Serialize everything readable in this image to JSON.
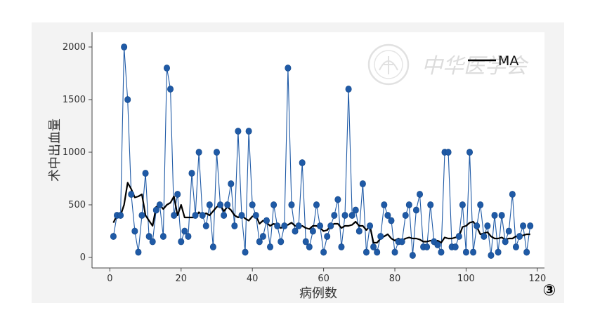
{
  "chart_data": {
    "type": "line",
    "xlabel": "病例数",
    "ylabel": "术中出血量",
    "xlim": [
      -5,
      122
    ],
    "ylim": [
      -100,
      2140
    ],
    "xticks": [
      0,
      20,
      40,
      60,
      80,
      100,
      120
    ],
    "yticks": [
      0,
      500,
      1000,
      1500,
      2000
    ],
    "grid": false,
    "legend": "top-right",
    "series": [
      {
        "name": "",
        "style": "line-markers",
        "color": "#1f5aa6",
        "x": [
          1,
          2,
          3,
          4,
          5,
          6,
          7,
          8,
          9,
          10,
          11,
          12,
          13,
          14,
          15,
          16,
          17,
          18,
          19,
          20,
          21,
          22,
          23,
          24,
          25,
          26,
          27,
          28,
          29,
          30,
          31,
          32,
          33,
          34,
          35,
          36,
          37,
          38,
          39,
          40,
          41,
          42,
          43,
          44,
          45,
          46,
          47,
          48,
          49,
          50,
          51,
          52,
          53,
          54,
          55,
          56,
          57,
          58,
          59,
          60,
          61,
          62,
          63,
          64,
          65,
          66,
          67,
          68,
          69,
          70,
          71,
          72,
          73,
          74,
          75,
          76,
          77,
          78,
          79,
          80,
          81,
          82,
          83,
          84,
          85,
          86,
          87,
          88,
          89,
          90,
          91,
          92,
          93,
          94,
          95,
          96,
          97,
          98,
          99,
          100,
          101,
          102,
          103,
          104,
          105,
          106,
          107,
          108,
          109,
          110,
          111,
          112,
          113,
          114,
          115,
          116,
          117,
          118
        ],
        "values": [
          200,
          400,
          400,
          2000,
          1500,
          600,
          250,
          50,
          400,
          800,
          200,
          150,
          450,
          500,
          200,
          1800,
          1600,
          400,
          600,
          150,
          250,
          200,
          800,
          400,
          1000,
          400,
          300,
          500,
          100,
          1000,
          500,
          400,
          500,
          700,
          300,
          1200,
          400,
          50,
          1200,
          500,
          400,
          150,
          200,
          350,
          100,
          500,
          300,
          150,
          300,
          1800,
          500,
          250,
          300,
          900,
          150,
          100,
          250,
          500,
          300,
          50,
          200,
          300,
          400,
          550,
          100,
          400,
          1600,
          400,
          450,
          250,
          700,
          50,
          300,
          100,
          50,
          200,
          500,
          400,
          350,
          50,
          150,
          150,
          400,
          500,
          20,
          450,
          600,
          100,
          100,
          500,
          150,
          120,
          50,
          1000,
          1000,
          100,
          100,
          200,
          500,
          50,
          1000,
          50,
          300,
          500,
          200,
          300,
          20,
          400,
          50,
          400,
          150,
          250,
          600,
          100,
          200,
          300,
          50,
          300
        ]
      },
      {
        "name": "MA",
        "style": "line",
        "color": "#000000",
        "x": [
          1,
          2,
          3,
          4,
          5,
          6,
          7,
          8,
          9,
          10,
          11,
          12,
          13,
          14,
          15,
          16,
          17,
          18,
          19,
          20,
          21,
          22,
          23,
          24,
          25,
          26,
          27,
          28,
          29,
          30,
          31,
          32,
          33,
          34,
          35,
          36,
          37,
          38,
          39,
          40,
          41,
          42,
          43,
          44,
          45,
          46,
          47,
          48,
          49,
          50,
          51,
          52,
          53,
          54,
          55,
          56,
          57,
          58,
          59,
          60,
          61,
          62,
          63,
          64,
          65,
          66,
          67,
          68,
          69,
          70,
          71,
          72,
          73,
          74,
          75,
          76,
          77,
          78,
          79,
          80,
          81,
          82,
          83,
          84,
          85,
          86,
          87,
          88,
          89,
          90,
          91,
          92,
          93,
          94,
          95,
          96,
          97,
          98,
          99,
          100,
          101,
          102,
          103,
          104,
          105,
          106,
          107,
          108,
          109,
          110,
          111,
          112,
          113,
          114,
          115,
          116,
          117,
          118
        ],
        "values": [
          330,
          400,
          400,
          500,
          710,
          650,
          570,
          580,
          600,
          400,
          350,
          300,
          480,
          500,
          460,
          500,
          520,
          580,
          400,
          500,
          380,
          380,
          380,
          380,
          430,
          400,
          420,
          400,
          440,
          480,
          500,
          440,
          480,
          450,
          400,
          380,
          400,
          370,
          350,
          390,
          400,
          320,
          350,
          330,
          300,
          320,
          300,
          280,
          300,
          310,
          330,
          300,
          290,
          300,
          280,
          270,
          300,
          300,
          280,
          250,
          260,
          300,
          320,
          320,
          280,
          300,
          300,
          310,
          340,
          300,
          300,
          260,
          300,
          140,
          140,
          180,
          200,
          220,
          180,
          160,
          180,
          160,
          180,
          190,
          180,
          180,
          170,
          150,
          150,
          160,
          150,
          160,
          140,
          190,
          180,
          180,
          190,
          200,
          290,
          300,
          330,
          340,
          290,
          220,
          230,
          240,
          200,
          180,
          180,
          190,
          170,
          180,
          180,
          200,
          200,
          210,
          220,
          220
        ]
      }
    ]
  },
  "badge": "③",
  "watermark": "中华医学会"
}
